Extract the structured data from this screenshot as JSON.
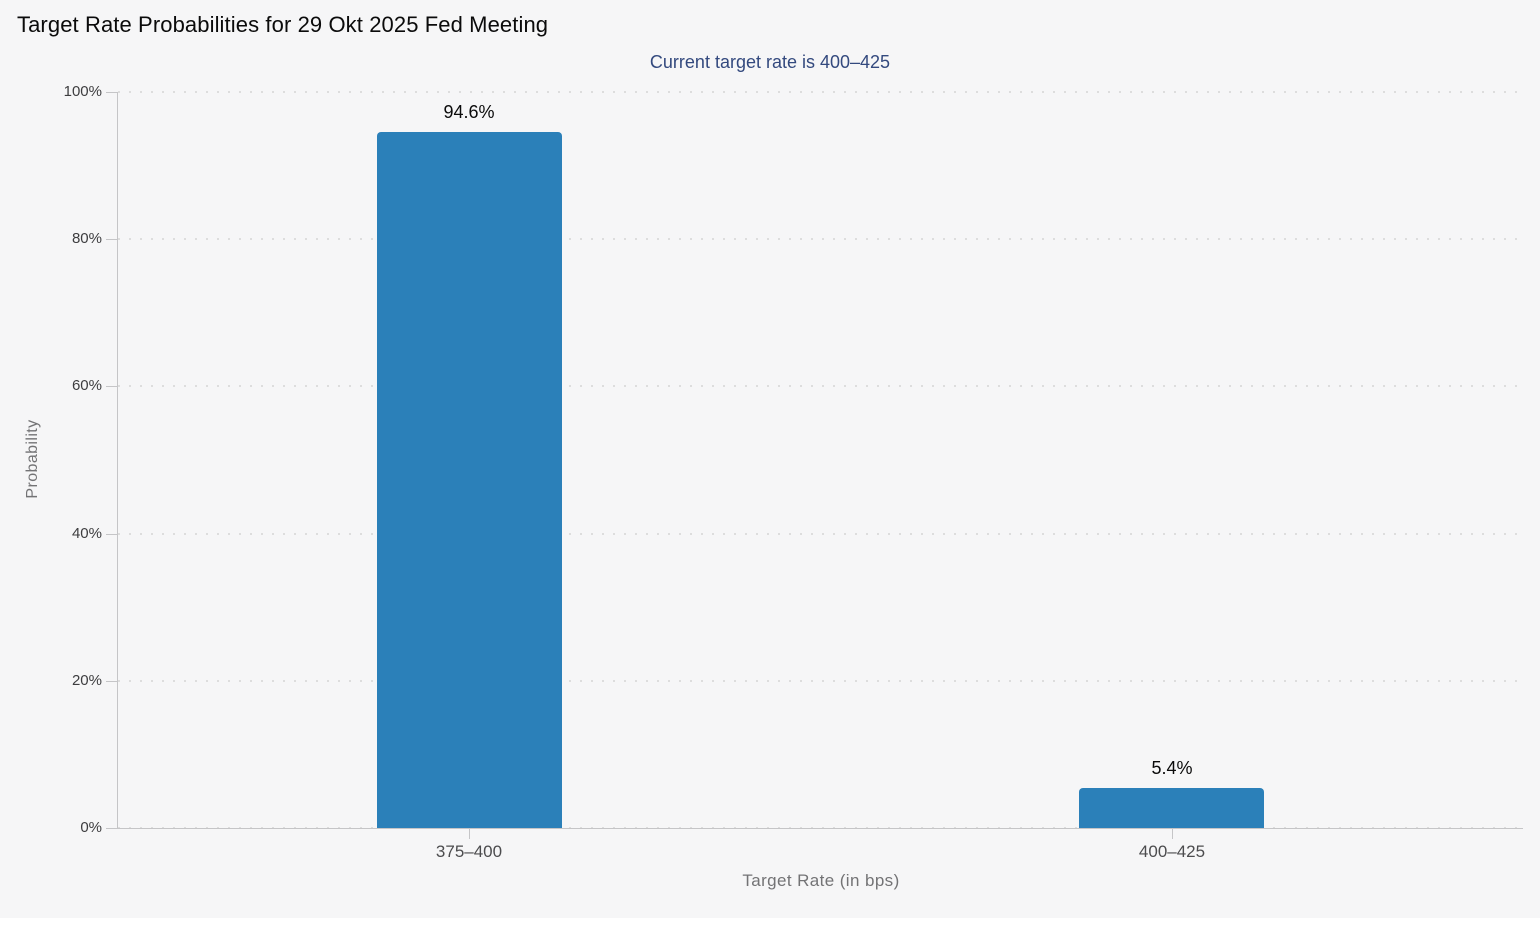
{
  "header": {
    "title": "Target Rate Probabilities for 29 Okt 2025 Fed Meeting",
    "subtitle": "Current target rate is 400–425"
  },
  "chart_data": {
    "type": "bar",
    "title": "Target Rate Probabilities for 29 Okt 2025 Fed Meeting",
    "subtitle": "Current target rate is 400–425",
    "categories": [
      "375–400",
      "400–425"
    ],
    "values": [
      94.6,
      5.4
    ],
    "value_labels": [
      "94.6%",
      "5.4%"
    ],
    "xlabel": "Target Rate (in bps)",
    "ylabel": "Probability",
    "ylim": [
      0,
      100
    ],
    "ytick_step": 20,
    "ytick_labels": [
      "0%",
      "20%",
      "40%",
      "60%",
      "80%",
      "100%"
    ],
    "grid": "horizontal-dotted",
    "legend_position": "none",
    "bar_color": "#2b80b9",
    "background_color": "#f6f6f7",
    "subtitle_color": "#33497e"
  }
}
